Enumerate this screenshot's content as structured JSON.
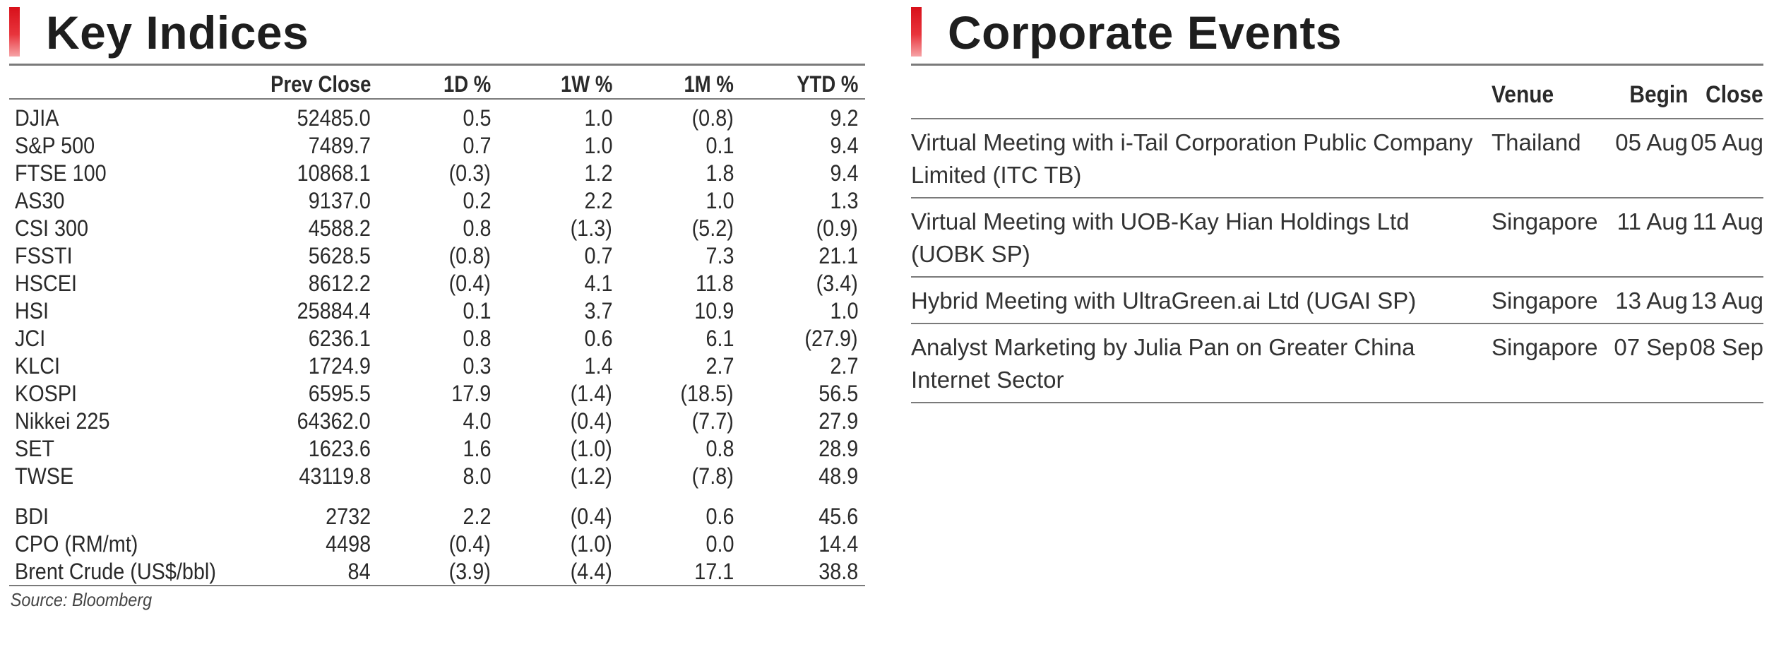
{
  "key_indices": {
    "title": "Key Indices",
    "columns": [
      "Prev Close",
      "1D %",
      "1W %",
      "1M %",
      "YTD %"
    ],
    "rows": [
      {
        "name": "DJIA",
        "prev_close": "52485.0",
        "d1": "0.5",
        "w1": "1.0",
        "m1": "(0.8)",
        "ytd": "9.2"
      },
      {
        "name": "S&P 500",
        "prev_close": "7489.7",
        "d1": "0.7",
        "w1": "1.0",
        "m1": "0.1",
        "ytd": "9.4"
      },
      {
        "name": "FTSE 100",
        "prev_close": "10868.1",
        "d1": "(0.3)",
        "w1": "1.2",
        "m1": "1.8",
        "ytd": "9.4"
      },
      {
        "name": "AS30",
        "prev_close": "9137.0",
        "d1": "0.2",
        "w1": "2.2",
        "m1": "1.0",
        "ytd": "1.3"
      },
      {
        "name": "CSI 300",
        "prev_close": "4588.2",
        "d1": "0.8",
        "w1": "(1.3)",
        "m1": "(5.2)",
        "ytd": "(0.9)"
      },
      {
        "name": "FSSTI",
        "prev_close": "5628.5",
        "d1": "(0.8)",
        "w1": "0.7",
        "m1": "7.3",
        "ytd": "21.1"
      },
      {
        "name": "HSCEI",
        "prev_close": "8612.2",
        "d1": "(0.4)",
        "w1": "4.1",
        "m1": "11.8",
        "ytd": "(3.4)"
      },
      {
        "name": "HSI",
        "prev_close": "25884.4",
        "d1": "0.1",
        "w1": "3.7",
        "m1": "10.9",
        "ytd": "1.0"
      },
      {
        "name": "JCI",
        "prev_close": "6236.1",
        "d1": "0.8",
        "w1": "0.6",
        "m1": "6.1",
        "ytd": "(27.9)"
      },
      {
        "name": "KLCI",
        "prev_close": "1724.9",
        "d1": "0.3",
        "w1": "1.4",
        "m1": "2.7",
        "ytd": "2.7"
      },
      {
        "name": "KOSPI",
        "prev_close": "6595.5",
        "d1": "17.9",
        "w1": "(1.4)",
        "m1": "(18.5)",
        "ytd": "56.5"
      },
      {
        "name": "Nikkei 225",
        "prev_close": "64362.0",
        "d1": "4.0",
        "w1": "(0.4)",
        "m1": "(7.7)",
        "ytd": "27.9"
      },
      {
        "name": "SET",
        "prev_close": "1623.6",
        "d1": "1.6",
        "w1": "(1.0)",
        "m1": "0.8",
        "ytd": "28.9"
      },
      {
        "name": "TWSE",
        "prev_close": "43119.8",
        "d1": "8.0",
        "w1": "(1.2)",
        "m1": "(7.8)",
        "ytd": "48.9"
      }
    ],
    "commodities": [
      {
        "name": "BDI",
        "prev_close": "2732",
        "d1": "2.2",
        "w1": "(0.4)",
        "m1": "0.6",
        "ytd": "45.6"
      },
      {
        "name": "CPO (RM/mt)",
        "prev_close": "4498",
        "d1": "(0.4)",
        "w1": "(1.0)",
        "m1": "0.0",
        "ytd": "14.4"
      },
      {
        "name": "Brent Crude (US$/bbl)",
        "prev_close": "84",
        "d1": "(3.9)",
        "w1": "(4.4)",
        "m1": "17.1",
        "ytd": "38.8"
      }
    ],
    "source": "Source: Bloomberg"
  },
  "corporate_events": {
    "title": "Corporate Events",
    "columns": {
      "venue": "Venue",
      "begin": "Begin",
      "close": "Close"
    },
    "rows": [
      {
        "event": "Virtual Meeting with i-Tail Corporation Public Company Limited (ITC TB)",
        "venue": "Thailand",
        "begin": "05 Aug",
        "close": "05 Aug"
      },
      {
        "event": "Virtual Meeting with UOB-Kay Hian Holdings Ltd (UOBK SP)",
        "venue": "Singapore",
        "begin": "11 Aug",
        "close": "11 Aug"
      },
      {
        "event": "Hybrid Meeting with UltraGreen.ai Ltd (UGAI SP)",
        "venue": "Singapore",
        "begin": "13 Aug",
        "close": "13 Aug"
      },
      {
        "event": "Analyst Marketing by Julia Pan on Greater China Internet Sector",
        "venue": "Singapore",
        "begin": "07 Sep",
        "close": "08 Sep"
      }
    ]
  },
  "colors": {
    "accent": "#d8101a",
    "rule": "#7a7a7a",
    "text": "#2a2a2a"
  }
}
